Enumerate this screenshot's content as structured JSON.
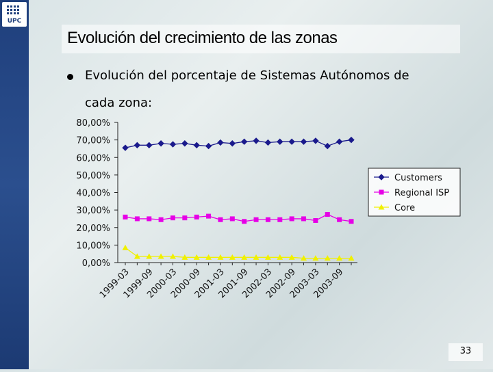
{
  "logo": {
    "text": "UPC"
  },
  "slide": {
    "title": "Evolución del crecimiento de las zonas",
    "bullet_line1": "Evolución del porcentaje de Sistemas Autónomos de",
    "bullet_line2": "cada zona:",
    "page_number": "33"
  },
  "chart_data": {
    "type": "line",
    "title": "",
    "xlabel": "",
    "ylabel": "",
    "ylim": [
      0,
      80
    ],
    "y_ticks": [
      "0,00%",
      "10,00%",
      "20,00%",
      "30,00%",
      "40,00%",
      "50,00%",
      "60,00%",
      "70,00%",
      "80,00%"
    ],
    "x_labels": [
      "1999-03",
      "1999-09",
      "2000-03",
      "2000-09",
      "2001-03",
      "2001-09",
      "2002-03",
      "2002-09",
      "2003-03",
      "2003-09"
    ],
    "series": [
      {
        "name": "Customers",
        "color": "#1a1a8c",
        "marker": "diamond",
        "values": [
          65.5,
          67,
          67,
          68,
          67.5,
          68,
          67,
          66.5,
          68.5,
          68,
          69,
          69.5,
          68.5,
          69,
          69,
          69,
          69.5,
          66.5,
          69,
          70
        ]
      },
      {
        "name": "Regional ISP",
        "color": "#e600e6",
        "marker": "square",
        "values": [
          26,
          25,
          25,
          24.5,
          25.5,
          25.5,
          26,
          26.5,
          24.5,
          25,
          23.5,
          24.5,
          24.5,
          24.5,
          25,
          25,
          24,
          27.5,
          24.5,
          23.5
        ]
      },
      {
        "name": "Core",
        "color": "#f0f000",
        "marker": "triangle",
        "values": [
          8.5,
          3.5,
          3.5,
          3.5,
          3.5,
          3,
          3,
          3,
          3,
          3,
          3,
          3,
          3,
          3,
          3,
          2.5,
          2.5,
          2.5,
          2.5,
          2.5
        ]
      }
    ],
    "legend_labels": [
      "Customers",
      "Regional ISP",
      "Core"
    ],
    "legend_position": "right"
  }
}
